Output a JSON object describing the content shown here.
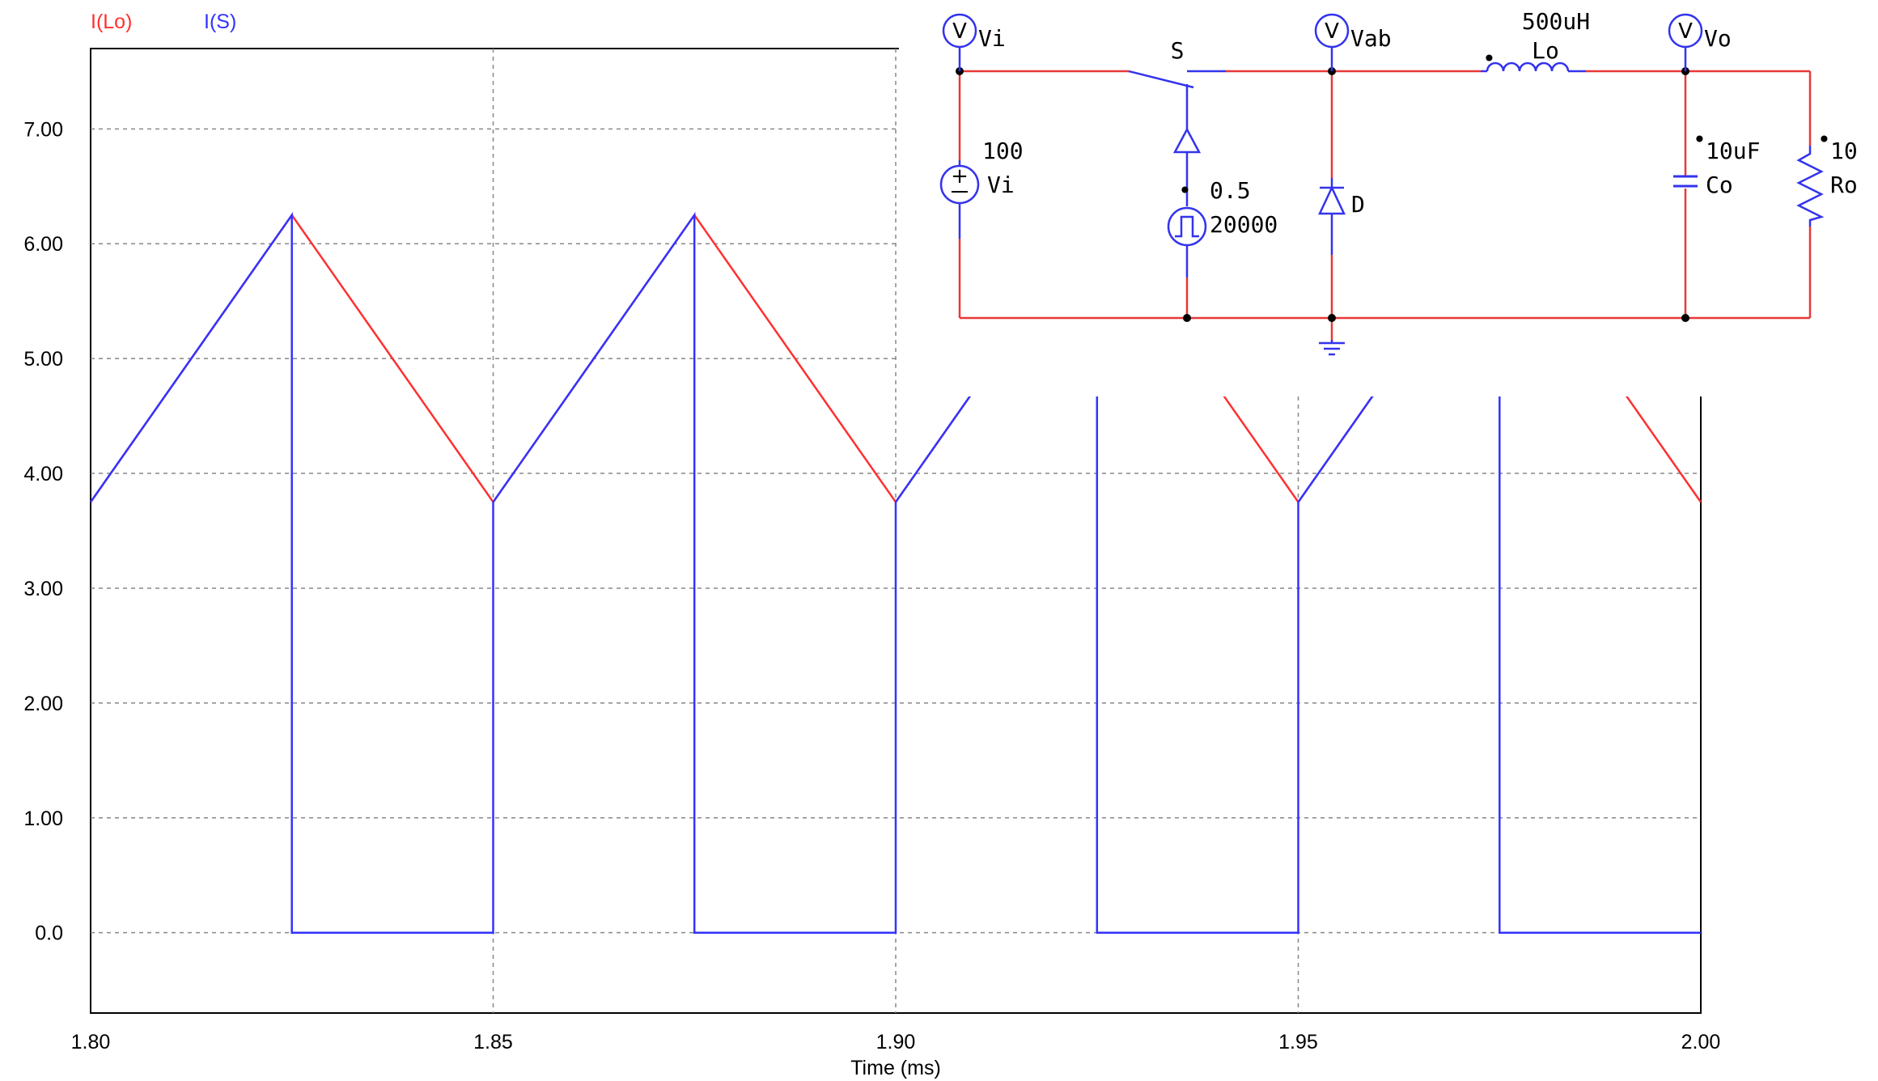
{
  "colors": {
    "series_lo": "#ff3030",
    "series_s": "#3333ff",
    "wire": "#e83838",
    "component": "#3333ee",
    "grid": "#888888"
  },
  "chart_data": {
    "type": "line",
    "title": "",
    "xlabel": "Time (ms)",
    "ylabel": "",
    "xlim": [
      1.8,
      2.0
    ],
    "ylim": [
      -0.7,
      7.7
    ],
    "x_ticks": [
      1.8,
      1.85,
      1.9,
      1.95,
      2.0
    ],
    "x_tick_labels": [
      "1.80",
      "1.85",
      "1.90",
      "1.95",
      "2.00"
    ],
    "y_ticks": [
      0,
      1,
      2,
      3,
      4,
      5,
      6,
      7
    ],
    "y_tick_labels": [
      "0.0",
      "1.00",
      "2.00",
      "3.00",
      "4.00",
      "5.00",
      "6.00",
      "7.00"
    ],
    "grid": true,
    "legend_position": "top-left",
    "series": [
      {
        "name": "I(Lo)",
        "color": "#ff3030",
        "x": [
          1.8,
          1.825,
          1.85,
          1.875,
          1.9,
          1.925,
          1.95,
          1.975,
          2.0
        ],
        "y": [
          3.75,
          6.25,
          3.75,
          6.25,
          3.75,
          6.25,
          3.75,
          6.25,
          3.75
        ]
      },
      {
        "name": "I(S)",
        "color": "#3333ff",
        "x": [
          1.8,
          1.825,
          1.825,
          1.85,
          1.85,
          1.875,
          1.875,
          1.9,
          1.9,
          1.925,
          1.925,
          1.95,
          1.95,
          1.975,
          1.975,
          2.0
        ],
        "y": [
          3.75,
          6.25,
          0,
          0,
          3.75,
          6.25,
          0,
          0,
          3.75,
          6.25,
          0,
          0,
          3.75,
          6.25,
          0,
          0
        ]
      }
    ]
  },
  "schematic": {
    "probes": [
      {
        "symbol": "V",
        "label": "Vi"
      },
      {
        "symbol": "V",
        "label": "Vab"
      },
      {
        "symbol": "V",
        "label": "Vo"
      }
    ],
    "switch": {
      "label": "S"
    },
    "source": {
      "value": "100",
      "name": "Vi"
    },
    "gate": {
      "duty": "0.5",
      "freq": "20000"
    },
    "diode": {
      "name": "D"
    },
    "inductor": {
      "value": "500uH",
      "name": "Lo"
    },
    "capacitor": {
      "value": "10uF",
      "name": "Co"
    },
    "resistor": {
      "value": "10",
      "name": "Ro"
    }
  }
}
